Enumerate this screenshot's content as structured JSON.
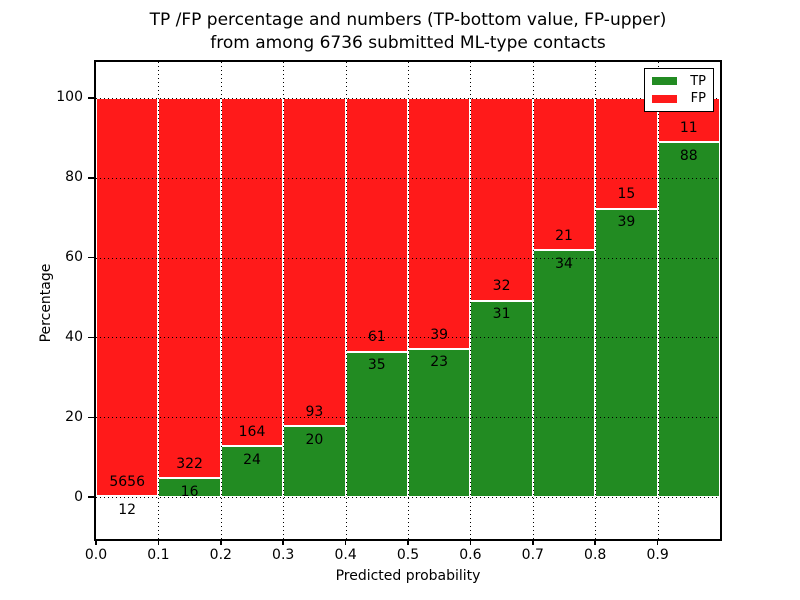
{
  "title": {
    "line1": "TP /FP percentage and numbers (TP-bottom value, FP-upper)",
    "line2": "from among 6736 submitted ML-type contacts"
  },
  "axes": {
    "xlabel": "Predicted probability",
    "ylabel": "Percentage",
    "x_tick_labels": [
      "0.0",
      "0.1",
      "0.2",
      "0.3",
      "0.4",
      "0.5",
      "0.6",
      "0.7",
      "0.8",
      "0.9"
    ],
    "y_tick_labels": [
      "0",
      "20",
      "40",
      "60",
      "80",
      "100"
    ],
    "y_tick_values": [
      0,
      20,
      40,
      60,
      80,
      100
    ]
  },
  "legend": {
    "items": [
      {
        "label": "TP",
        "color": "#228b22"
      },
      {
        "label": "FP",
        "color": "#ff1a1a"
      }
    ],
    "position": "upper right"
  },
  "colors": {
    "tp": "#228b22",
    "fp": "#ff1a1a",
    "grid": "#000000",
    "background": "#ffffff",
    "bar_edge": "#ffffff"
  },
  "chart_data": {
    "type": "bar",
    "stacked": true,
    "normalized_to_percent": true,
    "title": "TP /FP percentage and numbers (TP-bottom value, FP-upper) from among 6736 submitted ML-type contacts",
    "total_contacts": 6736,
    "xlabel": "Predicted probability",
    "ylabel": "Percentage",
    "bin_starts": [
      0.0,
      0.1,
      0.2,
      0.3,
      0.4,
      0.5,
      0.6,
      0.7,
      0.8,
      0.9
    ],
    "bin_width": 0.1,
    "series": [
      {
        "name": "TP",
        "counts": [
          12,
          16,
          24,
          20,
          35,
          23,
          31,
          34,
          39,
          88
        ]
      },
      {
        "name": "FP",
        "counts": [
          5656,
          322,
          164,
          93,
          61,
          39,
          32,
          21,
          15,
          11
        ]
      }
    ],
    "tp_percent_heights": [
      0.2,
      4.7,
      12.8,
      17.7,
      36.5,
      37.1,
      49.2,
      61.8,
      72.2,
      88.9
    ],
    "xlim": [
      0.0,
      1.0
    ],
    "ylim": [
      -10.5,
      109
    ],
    "grid": true,
    "grid_style": "dotted",
    "legend_position": "upper right",
    "annotation_rule": "TP count printed at top of green segment, FP count printed just above segment boundary"
  }
}
